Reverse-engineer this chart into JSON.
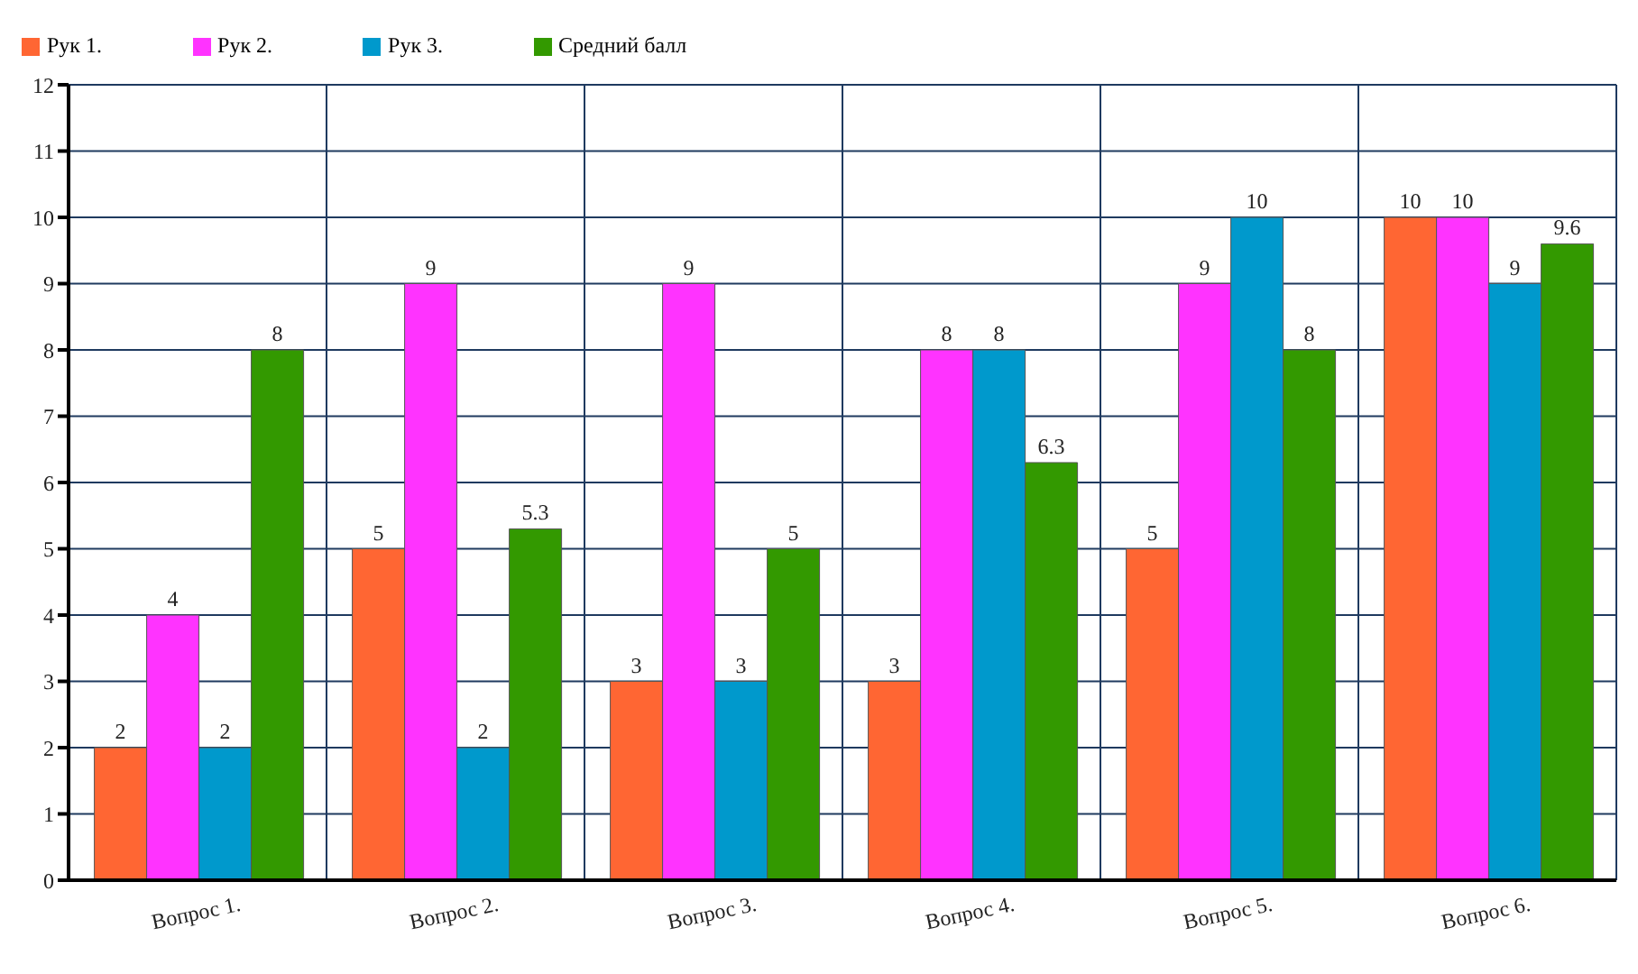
{
  "chart_data": {
    "type": "bar",
    "categories": [
      "Вопрос 1.",
      "Вопрос 2.",
      "Вопрос 3.",
      "Вопрос 4.",
      "Вопрос 5.",
      "Вопрос 6."
    ],
    "series": [
      {
        "name": "Рук 1.",
        "color": "#ff6633",
        "values": [
          2,
          5,
          3,
          3,
          5,
          10
        ]
      },
      {
        "name": "Рук 2.",
        "color": "#ff33ff",
        "values": [
          4,
          9,
          9,
          8,
          9,
          10
        ]
      },
      {
        "name": "Рук 3.",
        "color": "#0099cc",
        "values": [
          2,
          2,
          3,
          8,
          10,
          9
        ]
      },
      {
        "name": "Средний балл",
        "color": "#339900",
        "values": [
          8,
          5.3,
          5,
          6.3,
          8,
          9.6
        ]
      }
    ],
    "ylim": [
      0,
      12
    ],
    "yticks": [
      0,
      1,
      2,
      3,
      4,
      5,
      6,
      7,
      8,
      9,
      10,
      11,
      12
    ],
    "grid": true,
    "legend": "top left",
    "data_labels": true
  }
}
